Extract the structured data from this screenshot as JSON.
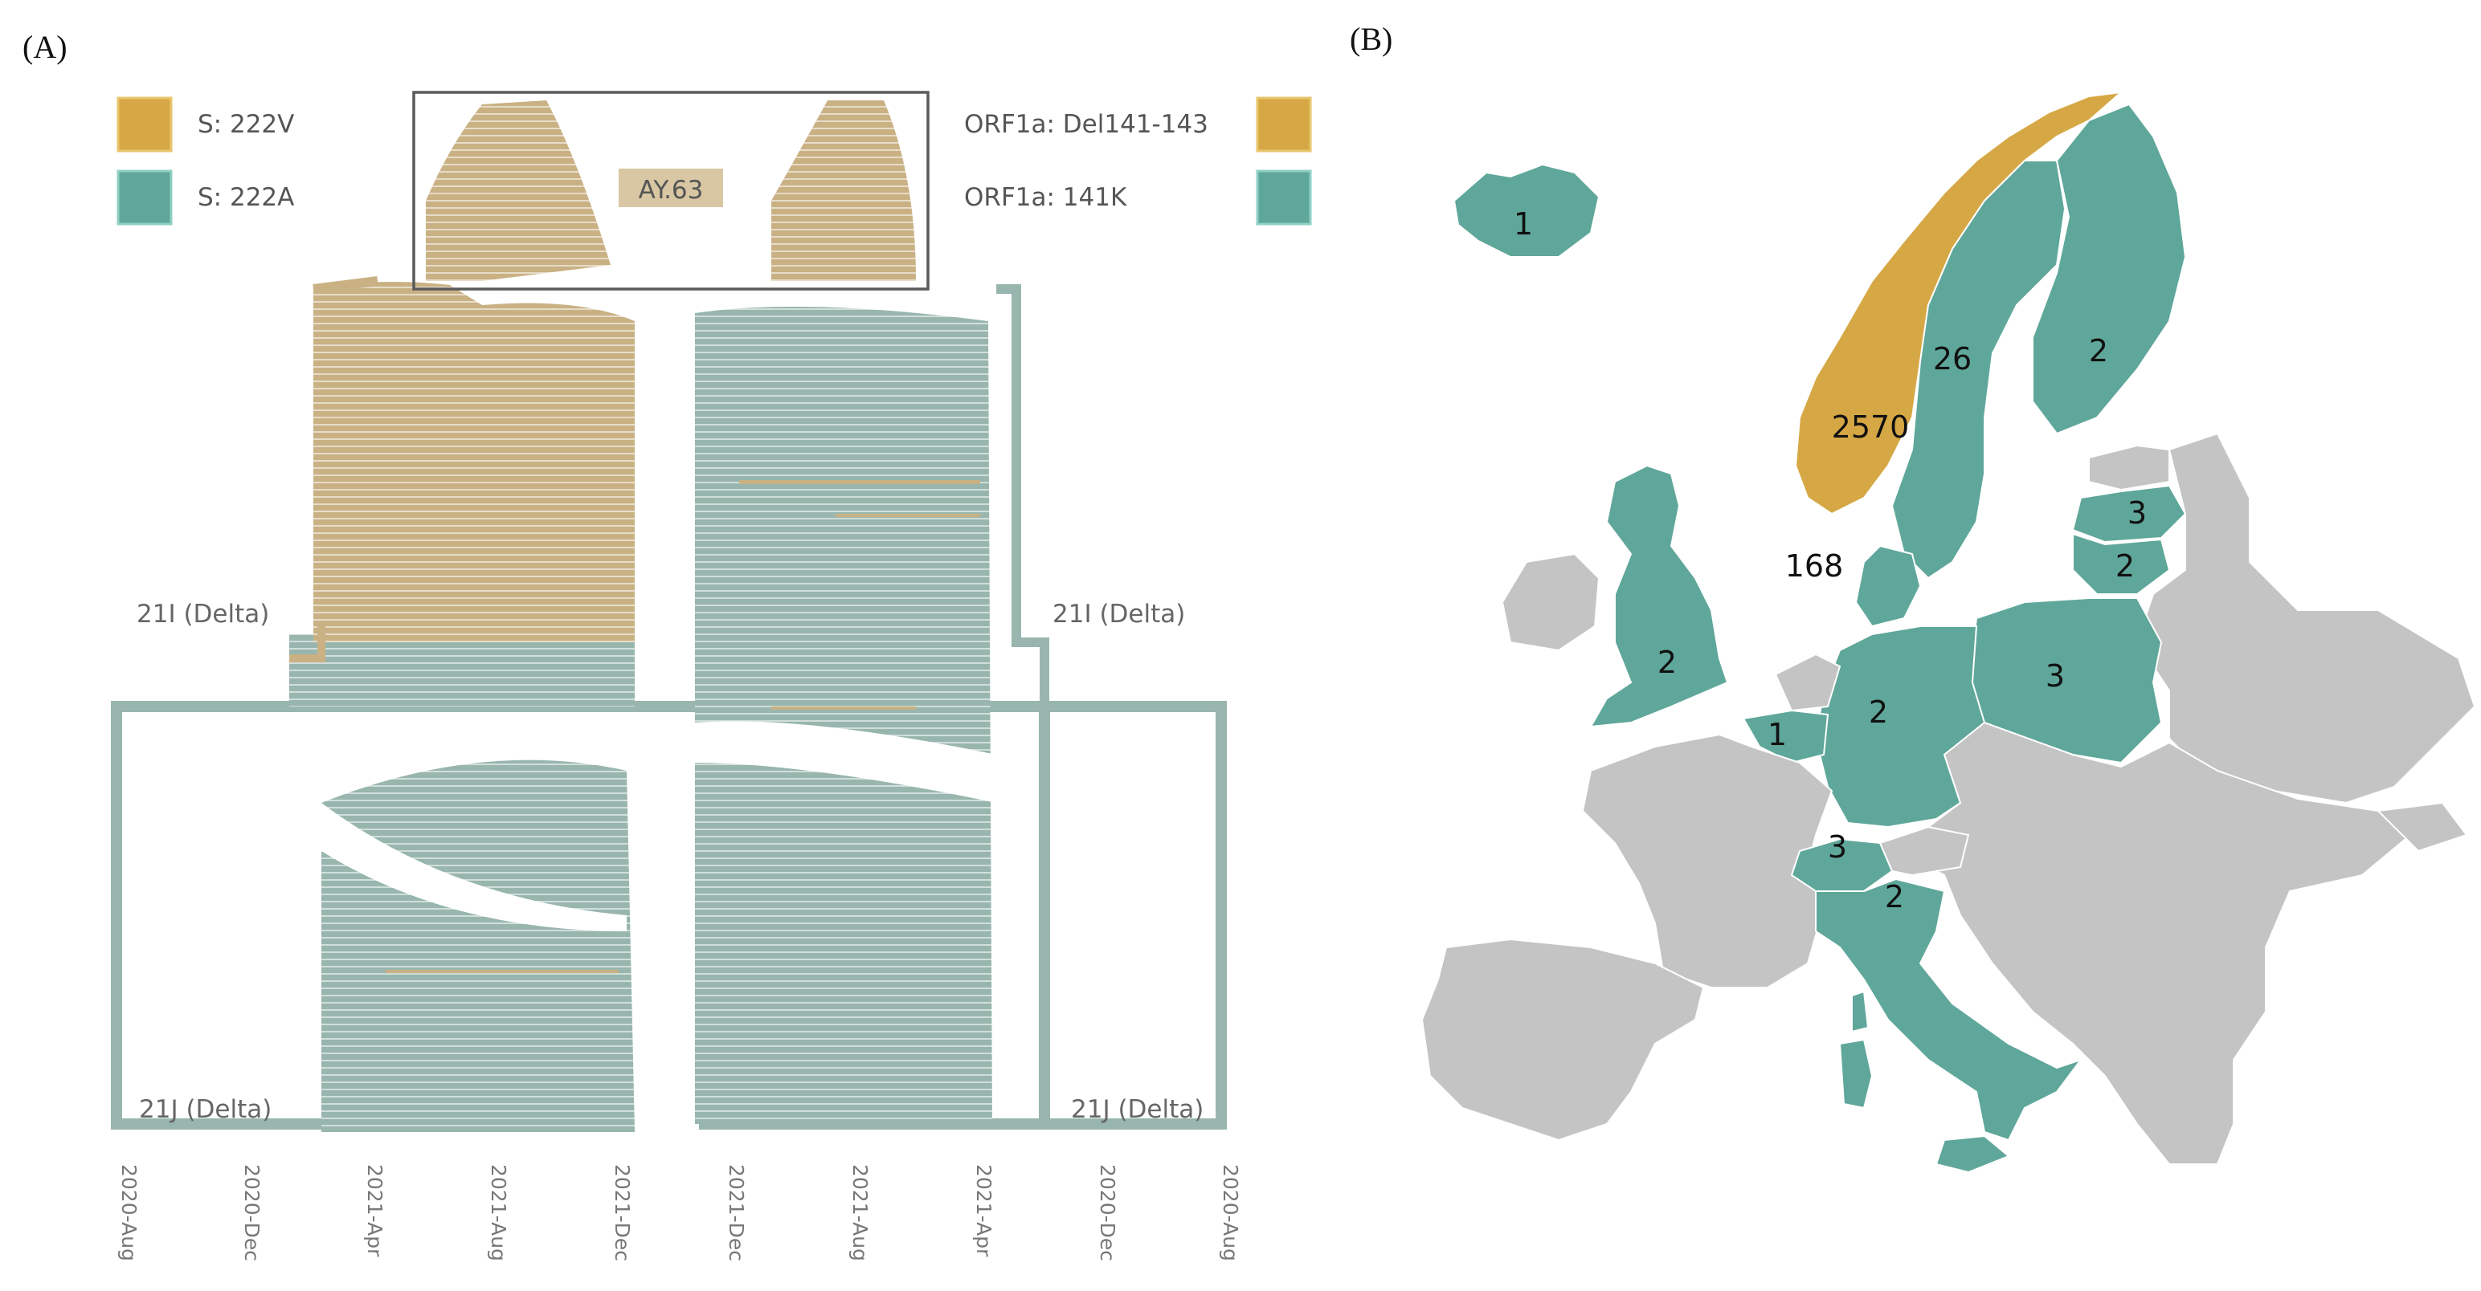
{
  "panels": {
    "a_label": "(A)",
    "b_label": "(B)"
  },
  "colors": {
    "gold": "#d6a845",
    "teal": "#5fa79a",
    "tree_gold": "#c9b184",
    "tree_teal": "#98b6ae",
    "map_grey": "#c4c4c4",
    "box": "#5a5a5a"
  },
  "legend_left": [
    {
      "label": "S: 222V",
      "color_key": "gold"
    },
    {
      "label": "S: 222A",
      "color_key": "teal"
    }
  ],
  "legend_right": [
    {
      "label": "ORF1a: Del141-143",
      "color_key": "gold"
    },
    {
      "label": "ORF1a: 141K",
      "color_key": "teal"
    }
  ],
  "tree": {
    "box_label": "AY.63",
    "clade_21i": "21I (Delta)",
    "clade_21j": "21J (Delta)",
    "axis_left": [
      "2020-Aug",
      "2020-Dec",
      "2021-Apr",
      "2021-Aug",
      "2021-Dec"
    ],
    "axis_right": [
      "2021-Dec",
      "2021-Aug",
      "2021-Apr",
      "2020-Dec",
      "2020-Aug"
    ]
  },
  "map_counts": [
    {
      "country": "Iceland",
      "count": "1",
      "mutation": "141K"
    },
    {
      "country": "Norway",
      "count": "2570",
      "mutation": "Del141-143"
    },
    {
      "country": "Sweden",
      "count": "26",
      "mutation": "141K"
    },
    {
      "country": "Finland",
      "count": "2",
      "mutation": "141K"
    },
    {
      "country": "Denmark",
      "count": "168",
      "mutation": "141K"
    },
    {
      "country": "Latvia",
      "count": "3",
      "mutation": "141K"
    },
    {
      "country": "Lithuania",
      "count": "2",
      "mutation": "141K"
    },
    {
      "country": "United Kingdom",
      "count": "2",
      "mutation": "141K"
    },
    {
      "country": "Belgium",
      "count": "1",
      "mutation": "141K"
    },
    {
      "country": "Germany",
      "count": "2",
      "mutation": "141K"
    },
    {
      "country": "Poland",
      "count": "3",
      "mutation": "141K"
    },
    {
      "country": "Switzerland",
      "count": "3",
      "mutation": "141K"
    },
    {
      "country": "Italy",
      "count": "2",
      "mutation": "141K"
    }
  ]
}
